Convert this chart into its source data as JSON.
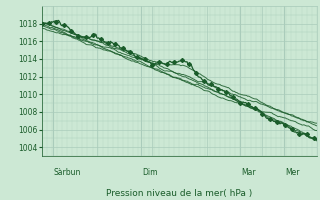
{
  "xlabel": "Pression niveau de la mer( hPa )",
  "day_labels": [
    "Sàrbun",
    "Dim",
    "Mar",
    "Mer"
  ],
  "day_positions": [
    0.04,
    0.36,
    0.72,
    0.88
  ],
  "ylim": [
    1003,
    1020
  ],
  "yticks": [
    1004,
    1006,
    1008,
    1010,
    1012,
    1014,
    1016,
    1018
  ],
  "bg_color": "#cce8d4",
  "grid_color": "#aaccbb",
  "line_color": "#1a5c2a"
}
